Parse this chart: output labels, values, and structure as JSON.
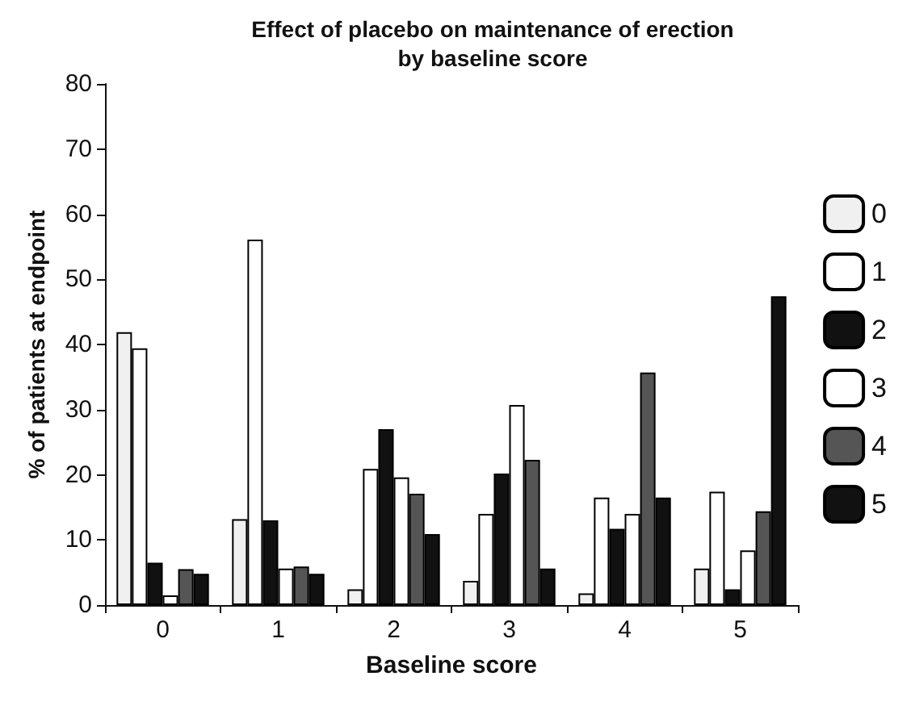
{
  "chart_data": {
    "type": "bar",
    "title": "Effect of placebo on maintenance of erection\nby baseline score",
    "xlabel": "Baseline score",
    "ylabel": "% of patients at endpoint",
    "categories": [
      "0",
      "1",
      "2",
      "3",
      "4",
      "5"
    ],
    "series": [
      {
        "name": "0",
        "color": "#f0f0f0",
        "values": [
          41.9,
          13.2,
          2.4,
          3.7,
          1.8,
          5.6
        ]
      },
      {
        "name": "1",
        "color": "#ffffff",
        "values": [
          39.4,
          56.1,
          20.9,
          14,
          16.5,
          17.4
        ]
      },
      {
        "name": "2",
        "color": "#111111",
        "values": [
          6.5,
          13,
          27,
          20.2,
          11.7,
          2.4
        ]
      },
      {
        "name": "3",
        "color": "#ffffff",
        "values": [
          1.5,
          5.6,
          19.6,
          30.7,
          14,
          8.4
        ]
      },
      {
        "name": "4",
        "color": "#555555",
        "values": [
          5.5,
          5.9,
          17.1,
          22.3,
          35.7,
          14.4
        ]
      },
      {
        "name": "5",
        "color": "#111111",
        "values": [
          4.8,
          4.8,
          10.9,
          5.6,
          16.5,
          47.4
        ]
      }
    ],
    "ylim": [
      0,
      80
    ],
    "yticks": [
      0,
      10,
      20,
      30,
      40,
      50,
      60,
      70,
      80
    ],
    "grid": false,
    "legend": "right"
  }
}
